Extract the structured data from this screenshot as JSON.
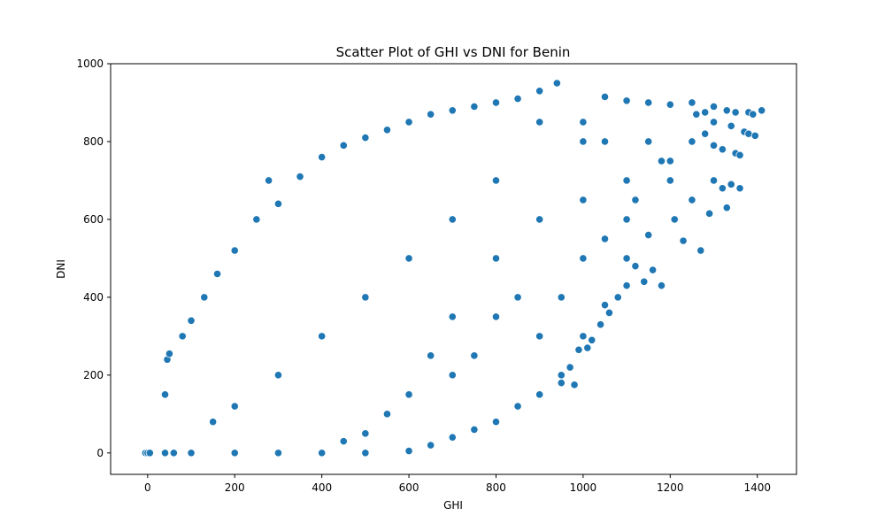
{
  "chart_data": {
    "type": "scatter",
    "title": "Scatter Plot of GHI vs DNI for Benin",
    "xlabel": "GHI",
    "ylabel": "DNI",
    "xlim": [
      -85,
      1490
    ],
    "ylim": [
      -55,
      1000
    ],
    "xticks": [
      0,
      200,
      400,
      600,
      800,
      1000,
      1200,
      1400
    ],
    "yticks": [
      0,
      200,
      400,
      600,
      800,
      1000
    ],
    "grid": false,
    "marker_color": "#1f77b4",
    "marker_edge_color": "#ffffff",
    "series": [
      {
        "name": "",
        "points": [
          [
            -5,
            0
          ],
          [
            0,
            0
          ],
          [
            5,
            0
          ],
          [
            40,
            0
          ],
          [
            60,
            0
          ],
          [
            100,
            0
          ],
          [
            200,
            0
          ],
          [
            300,
            0
          ],
          [
            400,
            0
          ],
          [
            500,
            0
          ],
          [
            600,
            5
          ],
          [
            650,
            20
          ],
          [
            700,
            40
          ],
          [
            750,
            60
          ],
          [
            800,
            80
          ],
          [
            850,
            120
          ],
          [
            900,
            150
          ],
          [
            950,
            180
          ],
          [
            980,
            175
          ],
          [
            40,
            150
          ],
          [
            45,
            240
          ],
          [
            50,
            255
          ],
          [
            80,
            300
          ],
          [
            100,
            340
          ],
          [
            130,
            400
          ],
          [
            160,
            460
          ],
          [
            200,
            520
          ],
          [
            250,
            600
          ],
          [
            278,
            700
          ],
          [
            300,
            640
          ],
          [
            350,
            710
          ],
          [
            400,
            760
          ],
          [
            450,
            790
          ],
          [
            500,
            810
          ],
          [
            550,
            830
          ],
          [
            600,
            850
          ],
          [
            650,
            870
          ],
          [
            700,
            880
          ],
          [
            750,
            890
          ],
          [
            800,
            900
          ],
          [
            850,
            910
          ],
          [
            900,
            930
          ],
          [
            940,
            950
          ],
          [
            1050,
            915
          ],
          [
            1100,
            905
          ],
          [
            1150,
            900
          ],
          [
            1200,
            895
          ],
          [
            1250,
            900
          ],
          [
            1300,
            890
          ],
          [
            1330,
            880
          ],
          [
            1350,
            875
          ],
          [
            1380,
            875
          ],
          [
            1390,
            870
          ],
          [
            1410,
            880
          ],
          [
            1280,
            875
          ],
          [
            1300,
            850
          ],
          [
            1340,
            840
          ],
          [
            1370,
            825
          ],
          [
            1380,
            820
          ],
          [
            1395,
            815
          ],
          [
            1260,
            870
          ],
          [
            1280,
            820
          ],
          [
            1300,
            790
          ],
          [
            1320,
            780
          ],
          [
            1350,
            770
          ],
          [
            1360,
            765
          ],
          [
            1300,
            700
          ],
          [
            1320,
            680
          ],
          [
            1340,
            690
          ],
          [
            1360,
            680
          ],
          [
            1330,
            630
          ],
          [
            1290,
            615
          ],
          [
            1270,
            520
          ],
          [
            1230,
            545
          ],
          [
            1210,
            600
          ],
          [
            1250,
            650
          ],
          [
            1180,
            430
          ],
          [
            1160,
            470
          ],
          [
            1140,
            440
          ],
          [
            1120,
            480
          ],
          [
            1100,
            430
          ],
          [
            1080,
            400
          ],
          [
            1060,
            360
          ],
          [
            1040,
            330
          ],
          [
            1020,
            290
          ],
          [
            1010,
            270
          ],
          [
            990,
            265
          ],
          [
            970,
            220
          ],
          [
            950,
            200
          ],
          [
            1000,
            300
          ],
          [
            1050,
            380
          ],
          [
            1100,
            500
          ],
          [
            1150,
            560
          ],
          [
            1200,
            700
          ],
          [
            1100,
            700
          ],
          [
            1000,
            800
          ],
          [
            900,
            850
          ],
          [
            800,
            700
          ],
          [
            700,
            600
          ],
          [
            600,
            500
          ],
          [
            500,
            400
          ],
          [
            400,
            300
          ],
          [
            300,
            200
          ],
          [
            200,
            120
          ],
          [
            150,
            80
          ],
          [
            1000,
            850
          ],
          [
            1050,
            800
          ],
          [
            1150,
            800
          ],
          [
            1200,
            750
          ],
          [
            1250,
            800
          ],
          [
            1100,
            600
          ],
          [
            1000,
            650
          ],
          [
            900,
            600
          ],
          [
            800,
            500
          ],
          [
            700,
            350
          ],
          [
            650,
            250
          ],
          [
            600,
            150
          ],
          [
            550,
            100
          ],
          [
            500,
            50
          ],
          [
            450,
            30
          ],
          [
            900,
            300
          ],
          [
            950,
            400
          ],
          [
            1050,
            550
          ],
          [
            1120,
            650
          ],
          [
            1180,
            750
          ],
          [
            850,
            400
          ],
          [
            750,
            250
          ],
          [
            700,
            200
          ],
          [
            800,
            350
          ],
          [
            1000,
            500
          ]
        ]
      }
    ]
  }
}
